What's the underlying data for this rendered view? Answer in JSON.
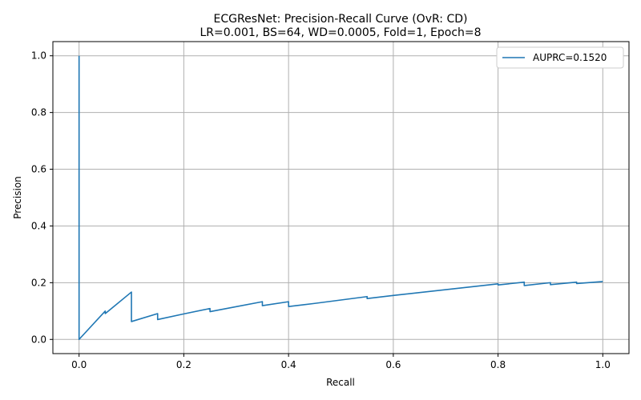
{
  "chart_data": {
    "type": "line",
    "title": "ECGResNet: Precision-Recall Curve (OvR: CD)",
    "subtitle": "LR=0.001, BS=64, WD=0.0005, Fold=1, Epoch=8",
    "xlabel": "Recall",
    "ylabel": "Precision",
    "xlim": [
      -0.05,
      1.05
    ],
    "ylim": [
      -0.05,
      1.05
    ],
    "xticks": [
      "0.0",
      "0.2",
      "0.4",
      "0.6",
      "0.8",
      "1.0"
    ],
    "yticks": [
      "0.0",
      "0.2",
      "0.4",
      "0.6",
      "0.8",
      "1.0"
    ],
    "grid": true,
    "legend_position": "top-right",
    "series": [
      {
        "name": "AUPRC=0.1520",
        "color": "#1f77b4",
        "x": [
          0.0,
          0.0,
          0.05,
          0.05,
          0.1,
          0.1,
          0.15,
          0.15,
          0.2,
          0.25,
          0.25,
          0.35,
          0.35,
          0.4,
          0.4,
          0.45,
          0.55,
          0.55,
          0.6,
          0.8,
          0.8,
          0.85,
          0.85,
          0.9,
          0.9,
          0.95,
          0.95,
          1.0
        ],
        "y": [
          1.0,
          0.0,
          0.1,
          0.091,
          0.167,
          0.063,
          0.091,
          0.07,
          0.09,
          0.109,
          0.098,
          0.133,
          0.119,
          0.133,
          0.116,
          0.127,
          0.151,
          0.144,
          0.155,
          0.196,
          0.192,
          0.202,
          0.19,
          0.2,
          0.193,
          0.202,
          0.197,
          0.204
        ]
      }
    ]
  }
}
